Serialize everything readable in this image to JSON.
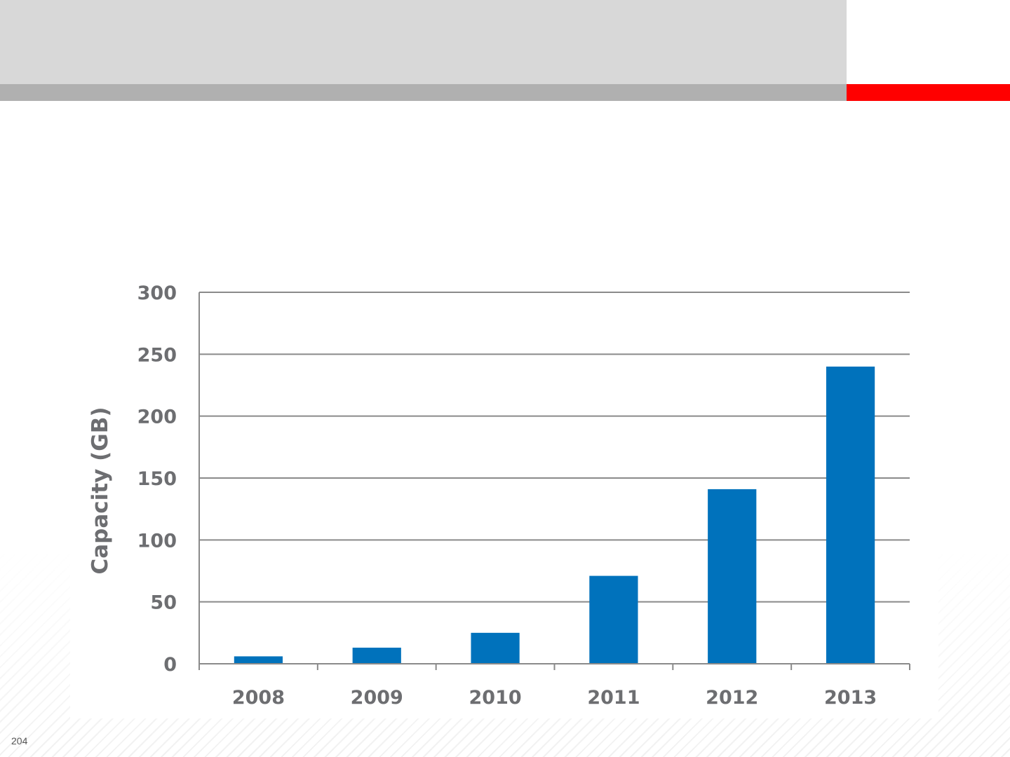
{
  "slide": {
    "page_number": "204",
    "colors": {
      "header_band": "#d8d8d8",
      "header_stripe": "#b0b0b0",
      "accent_red": "#ff0000"
    }
  },
  "chart_data": {
    "type": "bar",
    "categories": [
      "2008",
      "2009",
      "2010",
      "2011",
      "2012",
      "2013"
    ],
    "values": [
      6,
      13,
      25,
      71,
      141,
      240
    ],
    "title": "",
    "xlabel": "",
    "ylabel": "Capacity (GB)",
    "ylim": [
      0,
      300
    ],
    "yticks": [
      "0",
      "50",
      "100",
      "150",
      "200",
      "250",
      "300"
    ],
    "grid": true,
    "bar_color": "#0072bc",
    "gridline_color": "#8a8a8a",
    "tick_label_color": "#6d6e71"
  }
}
